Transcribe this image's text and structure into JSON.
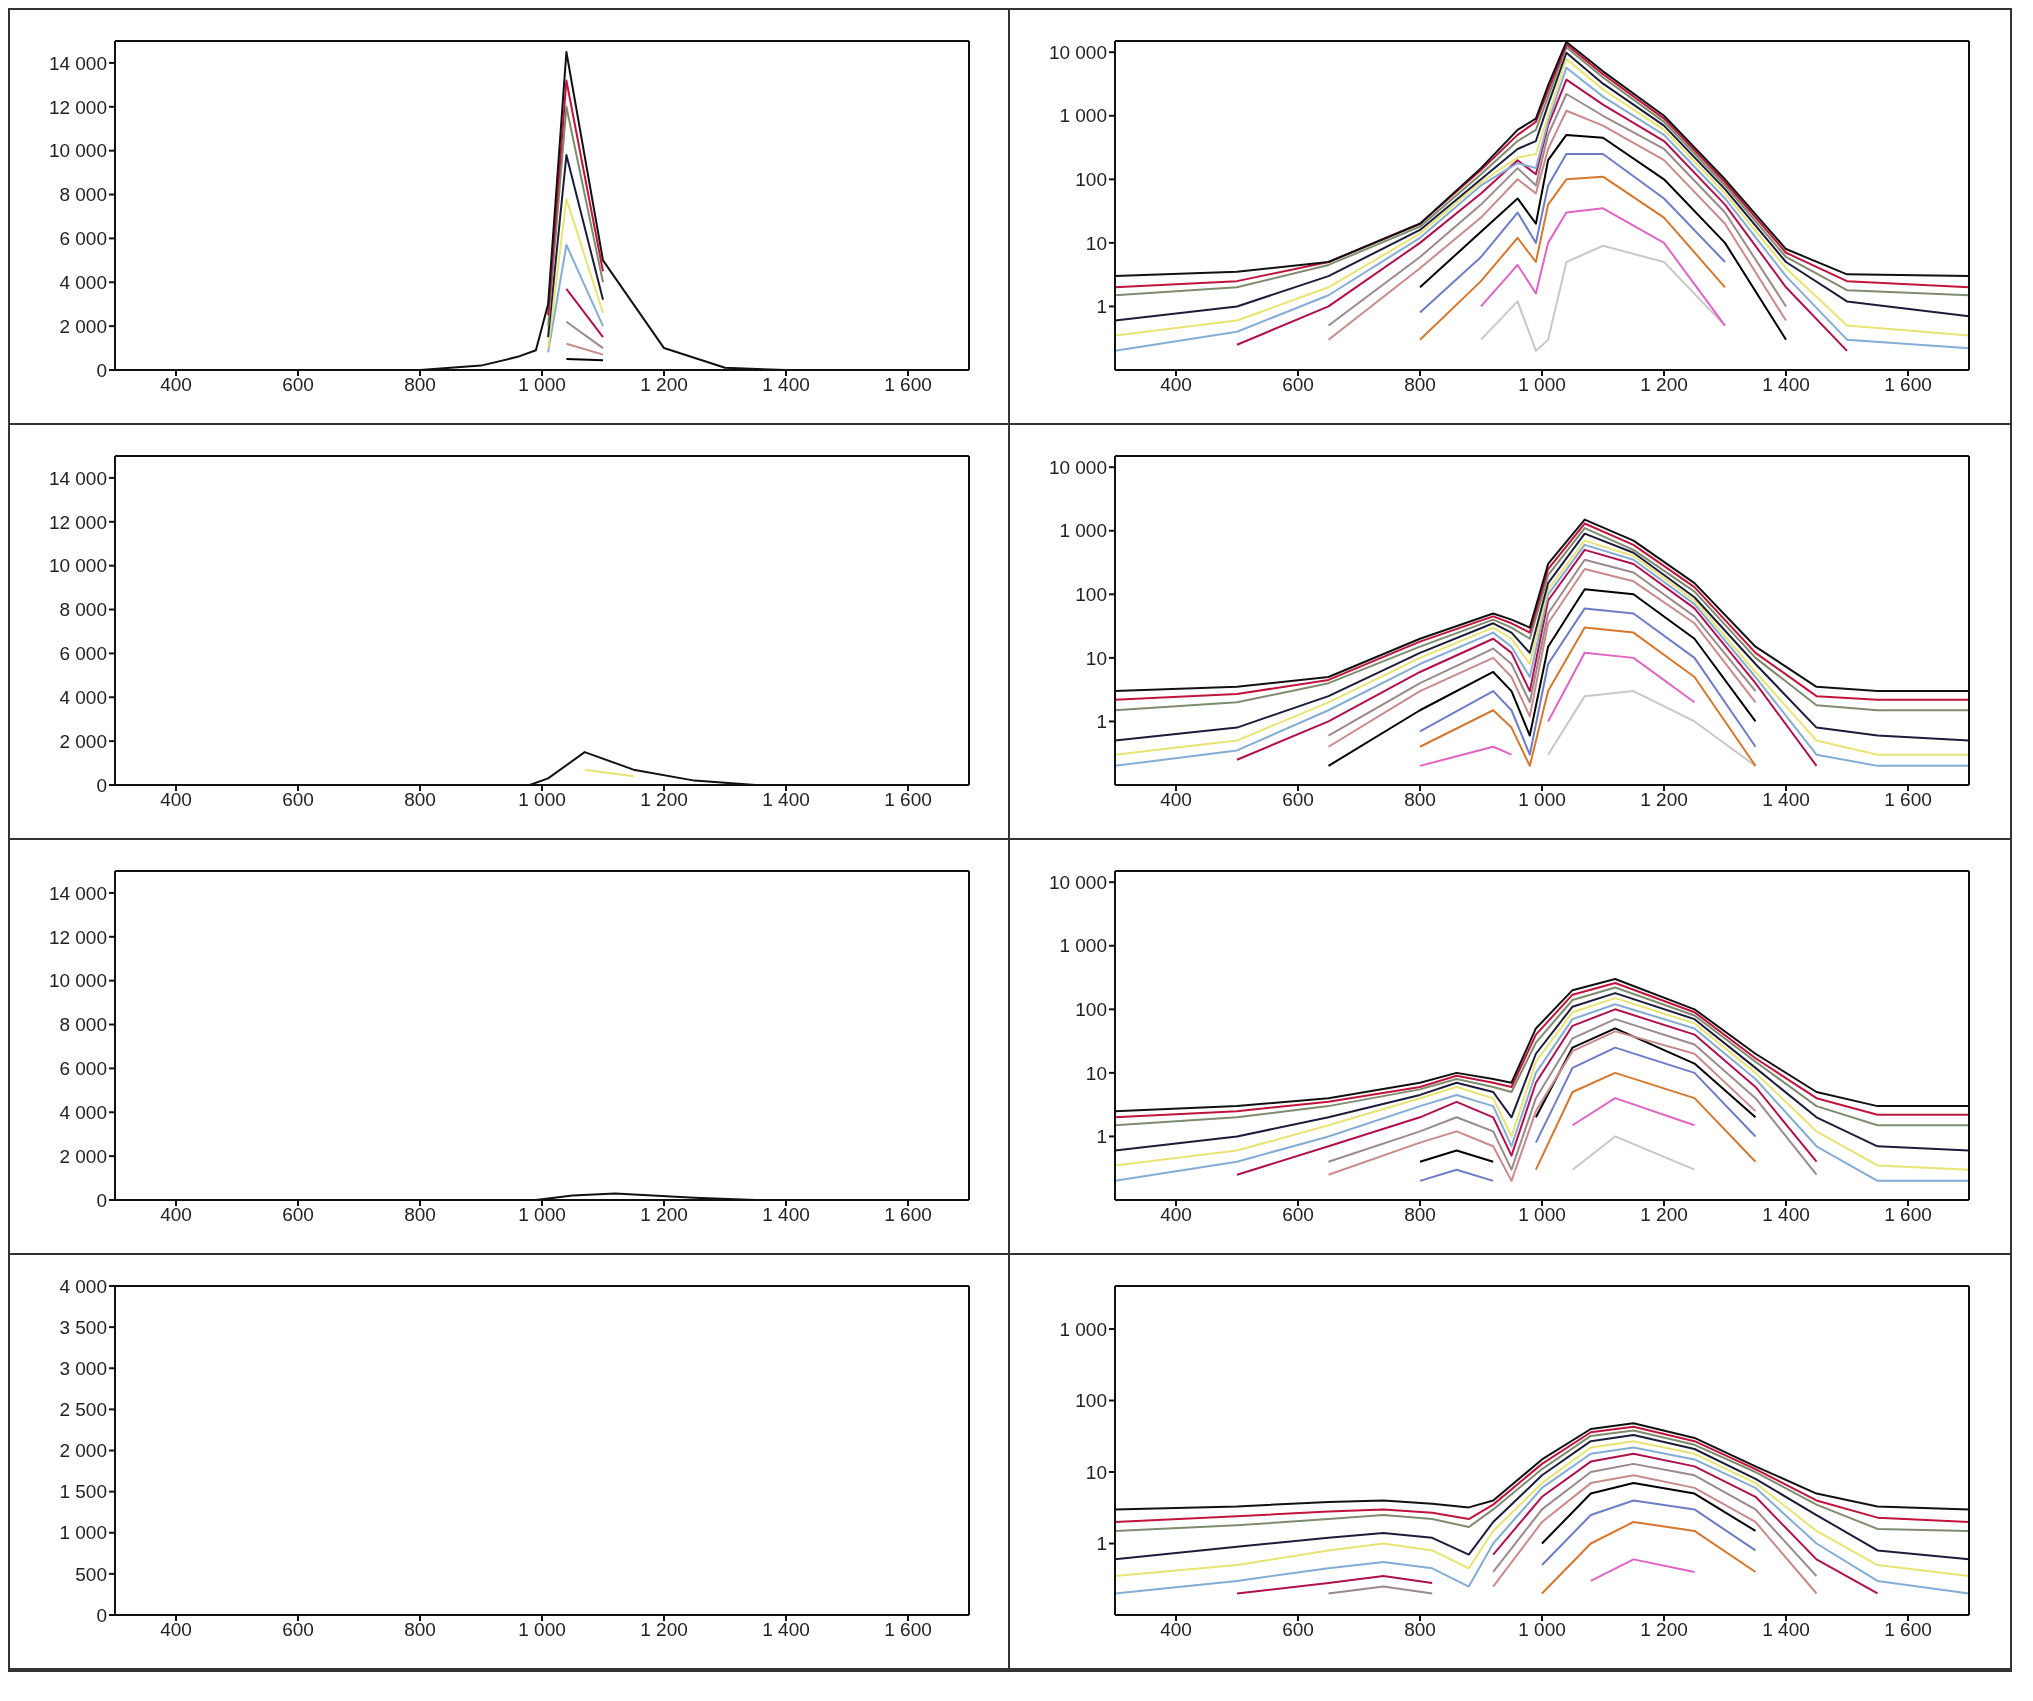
{
  "chart_data": [
    {
      "type": "line",
      "x": [
        300,
        500,
        650,
        800,
        900,
        960,
        990,
        1010,
        1040,
        1100,
        1200,
        1300,
        1400,
        1500,
        1700
      ],
      "xlim": [
        300,
        1700
      ],
      "xticks": [
        400,
        600,
        800,
        {
          "value": 1000,
          "label": "1 000"
        },
        {
          "value": 1200,
          "label": "1 200"
        },
        {
          "value": 1400,
          "label": "1 400"
        },
        {
          "value": 1600,
          "label": "1 600"
        }
      ],
      "ylim": [
        0,
        15000
      ],
      "yticks": [
        0,
        {
          "value": 2000,
          "label": "2 000"
        },
        {
          "value": 4000,
          "label": "4 000"
        },
        {
          "value": 6000,
          "label": "6 000"
        },
        {
          "value": 8000,
          "label": "8 000"
        },
        {
          "value": 10000,
          "label": "10 000"
        },
        {
          "value": 12000,
          "label": "12 000"
        },
        {
          "value": 14000,
          "label": "14 000"
        }
      ],
      "series": [
        {
          "color": "#111111",
          "values": [
            0,
            0,
            0,
            0,
            200,
            600,
            900,
            3000,
            14500,
            5000,
            1000,
            100,
            0,
            0,
            0
          ]
        },
        {
          "color": "#c0143c",
          "values": [
            null,
            null,
            null,
            null,
            null,
            null,
            null,
            2500,
            13200,
            4500,
            null,
            null,
            null,
            null,
            null
          ]
        },
        {
          "color": "#7d8c6e",
          "values": [
            null,
            null,
            null,
            null,
            null,
            null,
            null,
            2000,
            12000,
            4000,
            null,
            null,
            null,
            null,
            null
          ]
        },
        {
          "color": "#1c1c3a",
          "values": [
            null,
            null,
            null,
            null,
            null,
            null,
            null,
            1500,
            9800,
            3200,
            null,
            null,
            null,
            null,
            null
          ]
        },
        {
          "color": "#e8e474",
          "values": [
            null,
            null,
            null,
            null,
            null,
            null,
            null,
            1000,
            7800,
            2600,
            null,
            null,
            null,
            null,
            null
          ]
        },
        {
          "color": "#84acd4",
          "values": [
            null,
            null,
            null,
            null,
            null,
            null,
            null,
            800,
            5700,
            2000,
            null,
            null,
            null,
            null,
            null
          ]
        },
        {
          "color": "#b0104e",
          "values": [
            null,
            null,
            null,
            null,
            null,
            null,
            null,
            null,
            3700,
            1500,
            null,
            null,
            null,
            null,
            null
          ]
        },
        {
          "color": "#9a8a8a",
          "values": [
            null,
            null,
            null,
            null,
            null,
            null,
            null,
            null,
            2200,
            1000,
            null,
            null,
            null,
            null,
            null
          ]
        },
        {
          "color": "#c88a8a",
          "values": [
            null,
            null,
            null,
            null,
            null,
            null,
            null,
            null,
            1200,
            700,
            null,
            null,
            null,
            null,
            null
          ]
        },
        {
          "color": "#000000",
          "values": [
            null,
            null,
            null,
            null,
            null,
            null,
            null,
            null,
            500,
            450,
            null,
            null,
            null,
            null,
            null
          ]
        }
      ]
    },
    {
      "type": "line",
      "log": true,
      "x": [
        300,
        500,
        650,
        800,
        900,
        960,
        990,
        1010,
        1040,
        1100,
        1200,
        1300,
        1400,
        1500,
        1700
      ],
      "xlim": [
        300,
        1700
      ],
      "xticks": [
        400,
        600,
        800,
        {
          "value": 1000,
          "label": "1 000"
        },
        {
          "value": 1200,
          "label": "1 200"
        },
        {
          "value": 1400,
          "label": "1 400"
        },
        {
          "value": 1600,
          "label": "1 600"
        }
      ],
      "ylim": [
        0.1,
        15000
      ],
      "yticks": [
        1,
        10,
        100,
        {
          "value": 1000,
          "label": "1 000"
        },
        {
          "value": 10000,
          "label": "10 000"
        }
      ],
      "series": [
        {
          "color": "#111111",
          "values": [
            3,
            3.5,
            5,
            20,
            150,
            600,
            900,
            3000,
            14500,
            5000,
            1000,
            100,
            8,
            3.2,
            3
          ]
        },
        {
          "color": "#c0143c",
          "values": [
            2,
            2.5,
            5,
            20,
            140,
            500,
            800,
            2500,
            13200,
            4500,
            900,
            90,
            7,
            2.5,
            2
          ]
        },
        {
          "color": "#7d8c6e",
          "values": [
            1.5,
            2,
            4.5,
            18,
            120,
            400,
            600,
            2000,
            12000,
            4000,
            800,
            80,
            6,
            1.8,
            1.5
          ]
        },
        {
          "color": "#1c1c3a",
          "values": [
            0.6,
            1,
            3,
            16,
            100,
            300,
            400,
            1500,
            9800,
            3200,
            700,
            70,
            5,
            1.2,
            0.7
          ]
        },
        {
          "color": "#e8e474",
          "values": [
            0.35,
            0.6,
            2,
            14,
            90,
            220,
            250,
            1000,
            7800,
            2600,
            600,
            60,
            4,
            0.5,
            0.35
          ]
        },
        {
          "color": "#84acd4",
          "values": [
            0.2,
            0.4,
            1.5,
            12,
            80,
            180,
            150,
            800,
            5700,
            2000,
            500,
            50,
            3,
            0.3,
            0.22
          ]
        },
        {
          "color": "#b0104e",
          "values": [
            null,
            0.25,
            1,
            10,
            60,
            200,
            120,
            700,
            3700,
            1500,
            400,
            40,
            2,
            0.2,
            null
          ]
        },
        {
          "color": "#9a8a8a",
          "values": [
            null,
            null,
            0.5,
            6,
            40,
            150,
            80,
            500,
            2200,
            1000,
            300,
            30,
            1,
            null,
            null
          ]
        },
        {
          "color": "#c88a8a",
          "values": [
            null,
            null,
            0.3,
            4,
            25,
            100,
            60,
            300,
            1200,
            700,
            200,
            20,
            0.6,
            null,
            null
          ]
        },
        {
          "color": "#000000",
          "values": [
            null,
            null,
            null,
            2,
            15,
            50,
            20,
            200,
            500,
            450,
            100,
            10,
            0.3,
            null,
            null
          ]
        },
        {
          "color": "#6e7cc4",
          "values": [
            null,
            null,
            null,
            0.8,
            6,
            30,
            10,
            80,
            250,
            250,
            50,
            5,
            null,
            null,
            null
          ]
        },
        {
          "color": "#d4782e",
          "values": [
            null,
            null,
            null,
            0.3,
            2.5,
            12,
            5,
            40,
            100,
            110,
            25,
            2,
            null,
            null,
            null
          ]
        },
        {
          "color": "#e064c4",
          "values": [
            null,
            null,
            null,
            null,
            1,
            4.5,
            1.6,
            10,
            30,
            35,
            10,
            0.5,
            null,
            null,
            null
          ]
        },
        {
          "color": "#c8c8c8",
          "values": [
            null,
            null,
            null,
            null,
            0.3,
            1.2,
            0.2,
            0.3,
            5,
            9,
            5,
            0.5,
            null,
            null,
            null
          ]
        }
      ]
    },
    {
      "type": "line",
      "x": [
        300,
        500,
        650,
        800,
        920,
        950,
        980,
        1010,
        1070,
        1150,
        1250,
        1350,
        1450,
        1550,
        1700
      ],
      "xlim": [
        300,
        1700
      ],
      "xticks": [
        400,
        600,
        800,
        {
          "value": 1000,
          "label": "1 000"
        },
        {
          "value": 1200,
          "label": "1 200"
        },
        {
          "value": 1400,
          "label": "1 400"
        },
        {
          "value": 1600,
          "label": "1 600"
        }
      ],
      "ylim": [
        0,
        15000
      ],
      "yticks": [
        0,
        {
          "value": 2000,
          "label": "2 000"
        },
        {
          "value": 4000,
          "label": "4 000"
        },
        {
          "value": 6000,
          "label": "6 000"
        },
        {
          "value": 8000,
          "label": "8 000"
        },
        {
          "value": 10000,
          "label": "10 000"
        },
        {
          "value": 12000,
          "label": "12 000"
        },
        {
          "value": 14000,
          "label": "14 000"
        }
      ],
      "series": [
        {
          "color": "#111111",
          "values": [
            0,
            0,
            0,
            0,
            0,
            0,
            0,
            300,
            1500,
            700,
            200,
            0,
            0,
            0,
            0
          ]
        },
        {
          "color": "#e8e474",
          "values": [
            null,
            null,
            null,
            null,
            null,
            null,
            null,
            null,
            700,
            400,
            null,
            null,
            null,
            null,
            null
          ]
        }
      ]
    },
    {
      "type": "line",
      "log": true,
      "x": [
        300,
        500,
        650,
        800,
        920,
        950,
        980,
        1010,
        1070,
        1150,
        1250,
        1350,
        1450,
        1550,
        1700
      ],
      "xlim": [
        300,
        1700
      ],
      "xticks": [
        400,
        600,
        800,
        {
          "value": 1000,
          "label": "1 000"
        },
        {
          "value": 1200,
          "label": "1 200"
        },
        {
          "value": 1400,
          "label": "1 400"
        },
        {
          "value": 1600,
          "label": "1 600"
        }
      ],
      "ylim": [
        0.1,
        15000
      ],
      "yticks": [
        1,
        10,
        100,
        {
          "value": 1000,
          "label": "1 000"
        },
        {
          "value": 10000,
          "label": "10 000"
        }
      ],
      "series": [
        {
          "color": "#111111",
          "values": [
            3,
            3.5,
            5,
            20,
            50,
            40,
            30,
            300,
            1500,
            700,
            150,
            15,
            3.5,
            3,
            3
          ]
        },
        {
          "color": "#c0143c",
          "values": [
            2.2,
            2.7,
            4.5,
            18,
            45,
            35,
            25,
            250,
            1300,
            600,
            130,
            12,
            2.5,
            2.2,
            2.2
          ]
        },
        {
          "color": "#7d8c6e",
          "values": [
            1.5,
            2,
            4,
            15,
            40,
            30,
            20,
            200,
            1100,
            500,
            110,
            10,
            1.8,
            1.5,
            1.5
          ]
        },
        {
          "color": "#1c1c3a",
          "values": [
            0.5,
            0.8,
            2.5,
            12,
            35,
            25,
            12,
            150,
            900,
            450,
            90,
            8,
            0.8,
            0.6,
            0.5
          ]
        },
        {
          "color": "#e8e474",
          "values": [
            0.3,
            0.5,
            2,
            10,
            30,
            20,
            8,
            120,
            700,
            400,
            80,
            6,
            0.5,
            0.3,
            0.3
          ]
        },
        {
          "color": "#84acd4",
          "values": [
            0.2,
            0.35,
            1.5,
            8,
            25,
            15,
            5,
            100,
            600,
            350,
            70,
            5,
            0.3,
            0.2,
            0.2
          ]
        },
        {
          "color": "#b0104e",
          "values": [
            null,
            0.25,
            1,
            6,
            20,
            12,
            3,
            80,
            500,
            300,
            60,
            4,
            0.2,
            null,
            null
          ]
        },
        {
          "color": "#9a8a8a",
          "values": [
            null,
            null,
            0.6,
            4,
            14,
            8,
            2,
            50,
            350,
            220,
            45,
            3,
            null,
            null,
            null
          ]
        },
        {
          "color": "#c88a8a",
          "values": [
            null,
            null,
            0.4,
            3,
            10,
            5,
            1.2,
            35,
            250,
            160,
            35,
            2,
            null,
            null,
            null
          ]
        },
        {
          "color": "#000000",
          "values": [
            null,
            null,
            0.2,
            1.5,
            6,
            3,
            0.6,
            15,
            120,
            100,
            20,
            1,
            null,
            null,
            null
          ]
        },
        {
          "color": "#6e7cc4",
          "values": [
            null,
            null,
            null,
            0.7,
            3,
            1.5,
            0.3,
            8,
            60,
            50,
            10,
            0.4,
            null,
            null,
            null
          ]
        },
        {
          "color": "#d4782e",
          "values": [
            null,
            null,
            null,
            0.4,
            1.5,
            0.8,
            0.2,
            3,
            30,
            25,
            5,
            0.2,
            null,
            null,
            null
          ]
        },
        {
          "color": "#e064c4",
          "values": [
            null,
            null,
            null,
            0.2,
            0.4,
            0.3,
            null,
            1,
            12,
            10,
            2,
            null,
            null,
            null,
            null
          ]
        },
        {
          "color": "#c8c8c8",
          "values": [
            null,
            null,
            null,
            null,
            null,
            null,
            null,
            0.3,
            2.5,
            3,
            1,
            0.2,
            null,
            null,
            null
          ]
        }
      ]
    },
    {
      "type": "line",
      "x": [
        300,
        500,
        650,
        800,
        860,
        920,
        950,
        990,
        1050,
        1120,
        1250,
        1350,
        1450,
        1550,
        1700
      ],
      "xlim": [
        300,
        1700
      ],
      "xticks": [
        400,
        600,
        800,
        {
          "value": 1000,
          "label": "1 000"
        },
        {
          "value": 1200,
          "label": "1 200"
        },
        {
          "value": 1400,
          "label": "1 400"
        },
        {
          "value": 1600,
          "label": "1 600"
        }
      ],
      "ylim": [
        0,
        15000
      ],
      "yticks": [
        0,
        {
          "value": 2000,
          "label": "2 000"
        },
        {
          "value": 4000,
          "label": "4 000"
        },
        {
          "value": 6000,
          "label": "6 000"
        },
        {
          "value": 8000,
          "label": "8 000"
        },
        {
          "value": 10000,
          "label": "10 000"
        },
        {
          "value": 12000,
          "label": "12 000"
        },
        {
          "value": 14000,
          "label": "14 000"
        }
      ],
      "series": [
        {
          "color": "#111111",
          "values": [
            0,
            0,
            0,
            0,
            0,
            0,
            0,
            0,
            200,
            300,
            100,
            0,
            0,
            0,
            0
          ]
        }
      ]
    },
    {
      "type": "line",
      "log": true,
      "x": [
        300,
        500,
        650,
        800,
        860,
        920,
        950,
        990,
        1050,
        1120,
        1250,
        1350,
        1450,
        1550,
        1700
      ],
      "xlim": [
        300,
        1700
      ],
      "xticks": [
        400,
        600,
        800,
        {
          "value": 1000,
          "label": "1 000"
        },
        {
          "value": 1200,
          "label": "1 200"
        },
        {
          "value": 1400,
          "label": "1 400"
        },
        {
          "value": 1600,
          "label": "1 600"
        }
      ],
      "ylim": [
        0.1,
        15000
      ],
      "yticks": [
        1,
        10,
        100,
        {
          "value": 1000,
          "label": "1 000"
        },
        {
          "value": 10000,
          "label": "10 000"
        }
      ],
      "series": [
        {
          "color": "#111111",
          "values": [
            2.5,
            3,
            4,
            7,
            10,
            8,
            7,
            50,
            200,
            300,
            100,
            20,
            5,
            3,
            3
          ]
        },
        {
          "color": "#c0143c",
          "values": [
            2,
            2.5,
            3.5,
            6,
            9,
            7,
            6,
            40,
            170,
            260,
            90,
            17,
            4,
            2.2,
            2.2
          ]
        },
        {
          "color": "#7d8c6e",
          "values": [
            1.5,
            2,
            3,
            5.5,
            8,
            6,
            5,
            30,
            140,
            220,
            80,
            15,
            3,
            1.5,
            1.5
          ]
        },
        {
          "color": "#1c1c3a",
          "values": [
            0.6,
            1,
            2,
            4.5,
            7,
            5,
            2,
            20,
            110,
            180,
            70,
            12,
            2,
            0.7,
            0.6
          ]
        },
        {
          "color": "#e8e474",
          "values": [
            0.35,
            0.6,
            1.5,
            4,
            6,
            4,
            1,
            15,
            90,
            150,
            60,
            10,
            1.2,
            0.35,
            0.3
          ]
        },
        {
          "color": "#84acd4",
          "values": [
            0.2,
            0.4,
            1,
            3,
            4.5,
            3,
            0.7,
            10,
            70,
            120,
            50,
            8,
            0.7,
            0.2,
            0.2
          ]
        },
        {
          "color": "#b0104e",
          "values": [
            null,
            0.25,
            0.7,
            2,
            3.5,
            2,
            0.5,
            7,
            55,
            100,
            40,
            6,
            0.4,
            null,
            null
          ]
        },
        {
          "color": "#9a8a8a",
          "values": [
            null,
            null,
            0.4,
            1.2,
            2,
            1.2,
            0.3,
            4,
            35,
            70,
            28,
            4,
            0.25,
            null,
            null
          ]
        },
        {
          "color": "#c88a8a",
          "values": [
            null,
            null,
            0.25,
            0.8,
            1.2,
            0.7,
            0.2,
            2.5,
            22,
            45,
            20,
            2.5,
            null,
            null,
            null
          ]
        },
        {
          "color": "#000000",
          "values": [
            null,
            null,
            null,
            0.4,
            0.6,
            0.4,
            null,
            2,
            25,
            50,
            14,
            2,
            null,
            null,
            null
          ]
        },
        {
          "color": "#6e7cc4",
          "values": [
            null,
            null,
            null,
            0.2,
            0.3,
            0.2,
            null,
            0.8,
            12,
            25,
            10,
            1,
            null,
            null,
            null
          ]
        },
        {
          "color": "#d4782e",
          "values": [
            null,
            null,
            null,
            null,
            null,
            null,
            null,
            0.3,
            5,
            10,
            4,
            0.4,
            null,
            null,
            null
          ]
        },
        {
          "color": "#e064c4",
          "values": [
            null,
            null,
            null,
            null,
            null,
            null,
            null,
            null,
            1.5,
            4,
            1.5,
            null,
            null,
            null,
            null
          ]
        },
        {
          "color": "#c8c8c8",
          "values": [
            null,
            null,
            null,
            null,
            null,
            null,
            null,
            null,
            0.3,
            1,
            0.3,
            null,
            null,
            null,
            null
          ]
        }
      ]
    },
    {
      "type": "line",
      "x": [
        300,
        500,
        650,
        740,
        820,
        880,
        920,
        1000,
        1080,
        1150,
        1250,
        1350,
        1450,
        1550,
        1700
      ],
      "xlim": [
        300,
        1700
      ],
      "xticks": [
        400,
        600,
        800,
        {
          "value": 1000,
          "label": "1 000"
        },
        {
          "value": 1200,
          "label": "1 200"
        },
        {
          "value": 1400,
          "label": "1 400"
        },
        {
          "value": 1600,
          "label": "1 600"
        }
      ],
      "ylim": [
        0,
        4000
      ],
      "yticks": [
        0,
        500,
        {
          "value": 1000,
          "label": "1 000"
        },
        {
          "value": 1500,
          "label": "1 500"
        },
        {
          "value": 2000,
          "label": "2 000"
        },
        {
          "value": 2500,
          "label": "2 500"
        },
        {
          "value": 3000,
          "label": "3 000"
        },
        {
          "value": 3500,
          "label": "3 500"
        },
        {
          "value": 4000,
          "label": "4 000"
        }
      ],
      "series": [
        {
          "color": "#111111",
          "values": [
            0,
            0,
            0,
            0,
            0,
            0,
            0,
            0,
            0,
            0,
            0,
            0,
            0,
            0,
            0
          ]
        }
      ]
    },
    {
      "type": "line",
      "log": true,
      "x": [
        300,
        500,
        650,
        740,
        820,
        880,
        920,
        1000,
        1080,
        1150,
        1250,
        1350,
        1450,
        1550,
        1700
      ],
      "xlim": [
        300,
        1700
      ],
      "xticks": [
        400,
        600,
        800,
        {
          "value": 1000,
          "label": "1 000"
        },
        {
          "value": 1200,
          "label": "1 200"
        },
        {
          "value": 1400,
          "label": "1 400"
        },
        {
          "value": 1600,
          "label": "1 600"
        }
      ],
      "ylim": [
        0.1,
        4000
      ],
      "yticks": [
        1,
        10,
        100,
        {
          "value": 1000,
          "label": "1 000"
        }
      ],
      "series": [
        {
          "color": "#111111",
          "values": [
            3,
            3.3,
            3.8,
            4,
            3.6,
            3.2,
            4,
            15,
            40,
            48,
            30,
            12,
            5,
            3.3,
            3
          ]
        },
        {
          "color": "#c0143c",
          "values": [
            2,
            2.4,
            2.8,
            3,
            2.7,
            2.2,
            3.5,
            13,
            36,
            43,
            27,
            11,
            4,
            2.3,
            2
          ]
        },
        {
          "color": "#7d8c6e",
          "values": [
            1.5,
            1.8,
            2.2,
            2.5,
            2.2,
            1.7,
            3,
            11,
            32,
            38,
            24,
            10,
            3.5,
            1.6,
            1.5
          ]
        },
        {
          "color": "#1c1c3a",
          "values": [
            0.6,
            0.9,
            1.2,
            1.4,
            1.2,
            0.7,
            2,
            9,
            27,
            33,
            21,
            8,
            2.5,
            0.8,
            0.6
          ]
        },
        {
          "color": "#e8e474",
          "values": [
            0.35,
            0.5,
            0.8,
            1,
            0.8,
            0.45,
            1.5,
            7,
            22,
            27,
            18,
            7,
            1.5,
            0.5,
            0.35
          ]
        },
        {
          "color": "#84acd4",
          "values": [
            0.2,
            0.3,
            0.45,
            0.55,
            0.45,
            0.25,
            1,
            6,
            18,
            22,
            15,
            6,
            1,
            0.3,
            0.2
          ]
        },
        {
          "color": "#b0104e",
          "values": [
            null,
            0.2,
            0.28,
            0.35,
            0.28,
            null,
            0.7,
            4.5,
            14,
            18,
            12,
            4.5,
            0.6,
            0.2,
            null
          ]
        },
        {
          "color": "#9a8a8a",
          "values": [
            null,
            null,
            0.2,
            0.25,
            0.2,
            null,
            0.4,
            3,
            10,
            13,
            9,
            3,
            0.35,
            null,
            null
          ]
        },
        {
          "color": "#c88a8a",
          "values": [
            null,
            null,
            null,
            null,
            null,
            null,
            0.25,
            2,
            7,
            9,
            6,
            2,
            0.2,
            null,
            null
          ]
        },
        {
          "color": "#000000",
          "values": [
            null,
            null,
            null,
            null,
            null,
            null,
            null,
            1,
            5,
            7,
            5,
            1.5,
            null,
            null,
            null
          ]
        },
        {
          "color": "#6e7cc4",
          "values": [
            null,
            null,
            null,
            null,
            null,
            null,
            null,
            0.5,
            2.5,
            4,
            3,
            0.8,
            null,
            null,
            null
          ]
        },
        {
          "color": "#d4782e",
          "values": [
            null,
            null,
            null,
            null,
            null,
            null,
            null,
            0.2,
            1,
            2,
            1.5,
            0.4,
            null,
            null,
            null
          ]
        },
        {
          "color": "#e064c4",
          "values": [
            null,
            null,
            null,
            null,
            null,
            null,
            null,
            null,
            0.3,
            0.6,
            0.4,
            null,
            null,
            null,
            null
          ]
        }
      ]
    }
  ]
}
